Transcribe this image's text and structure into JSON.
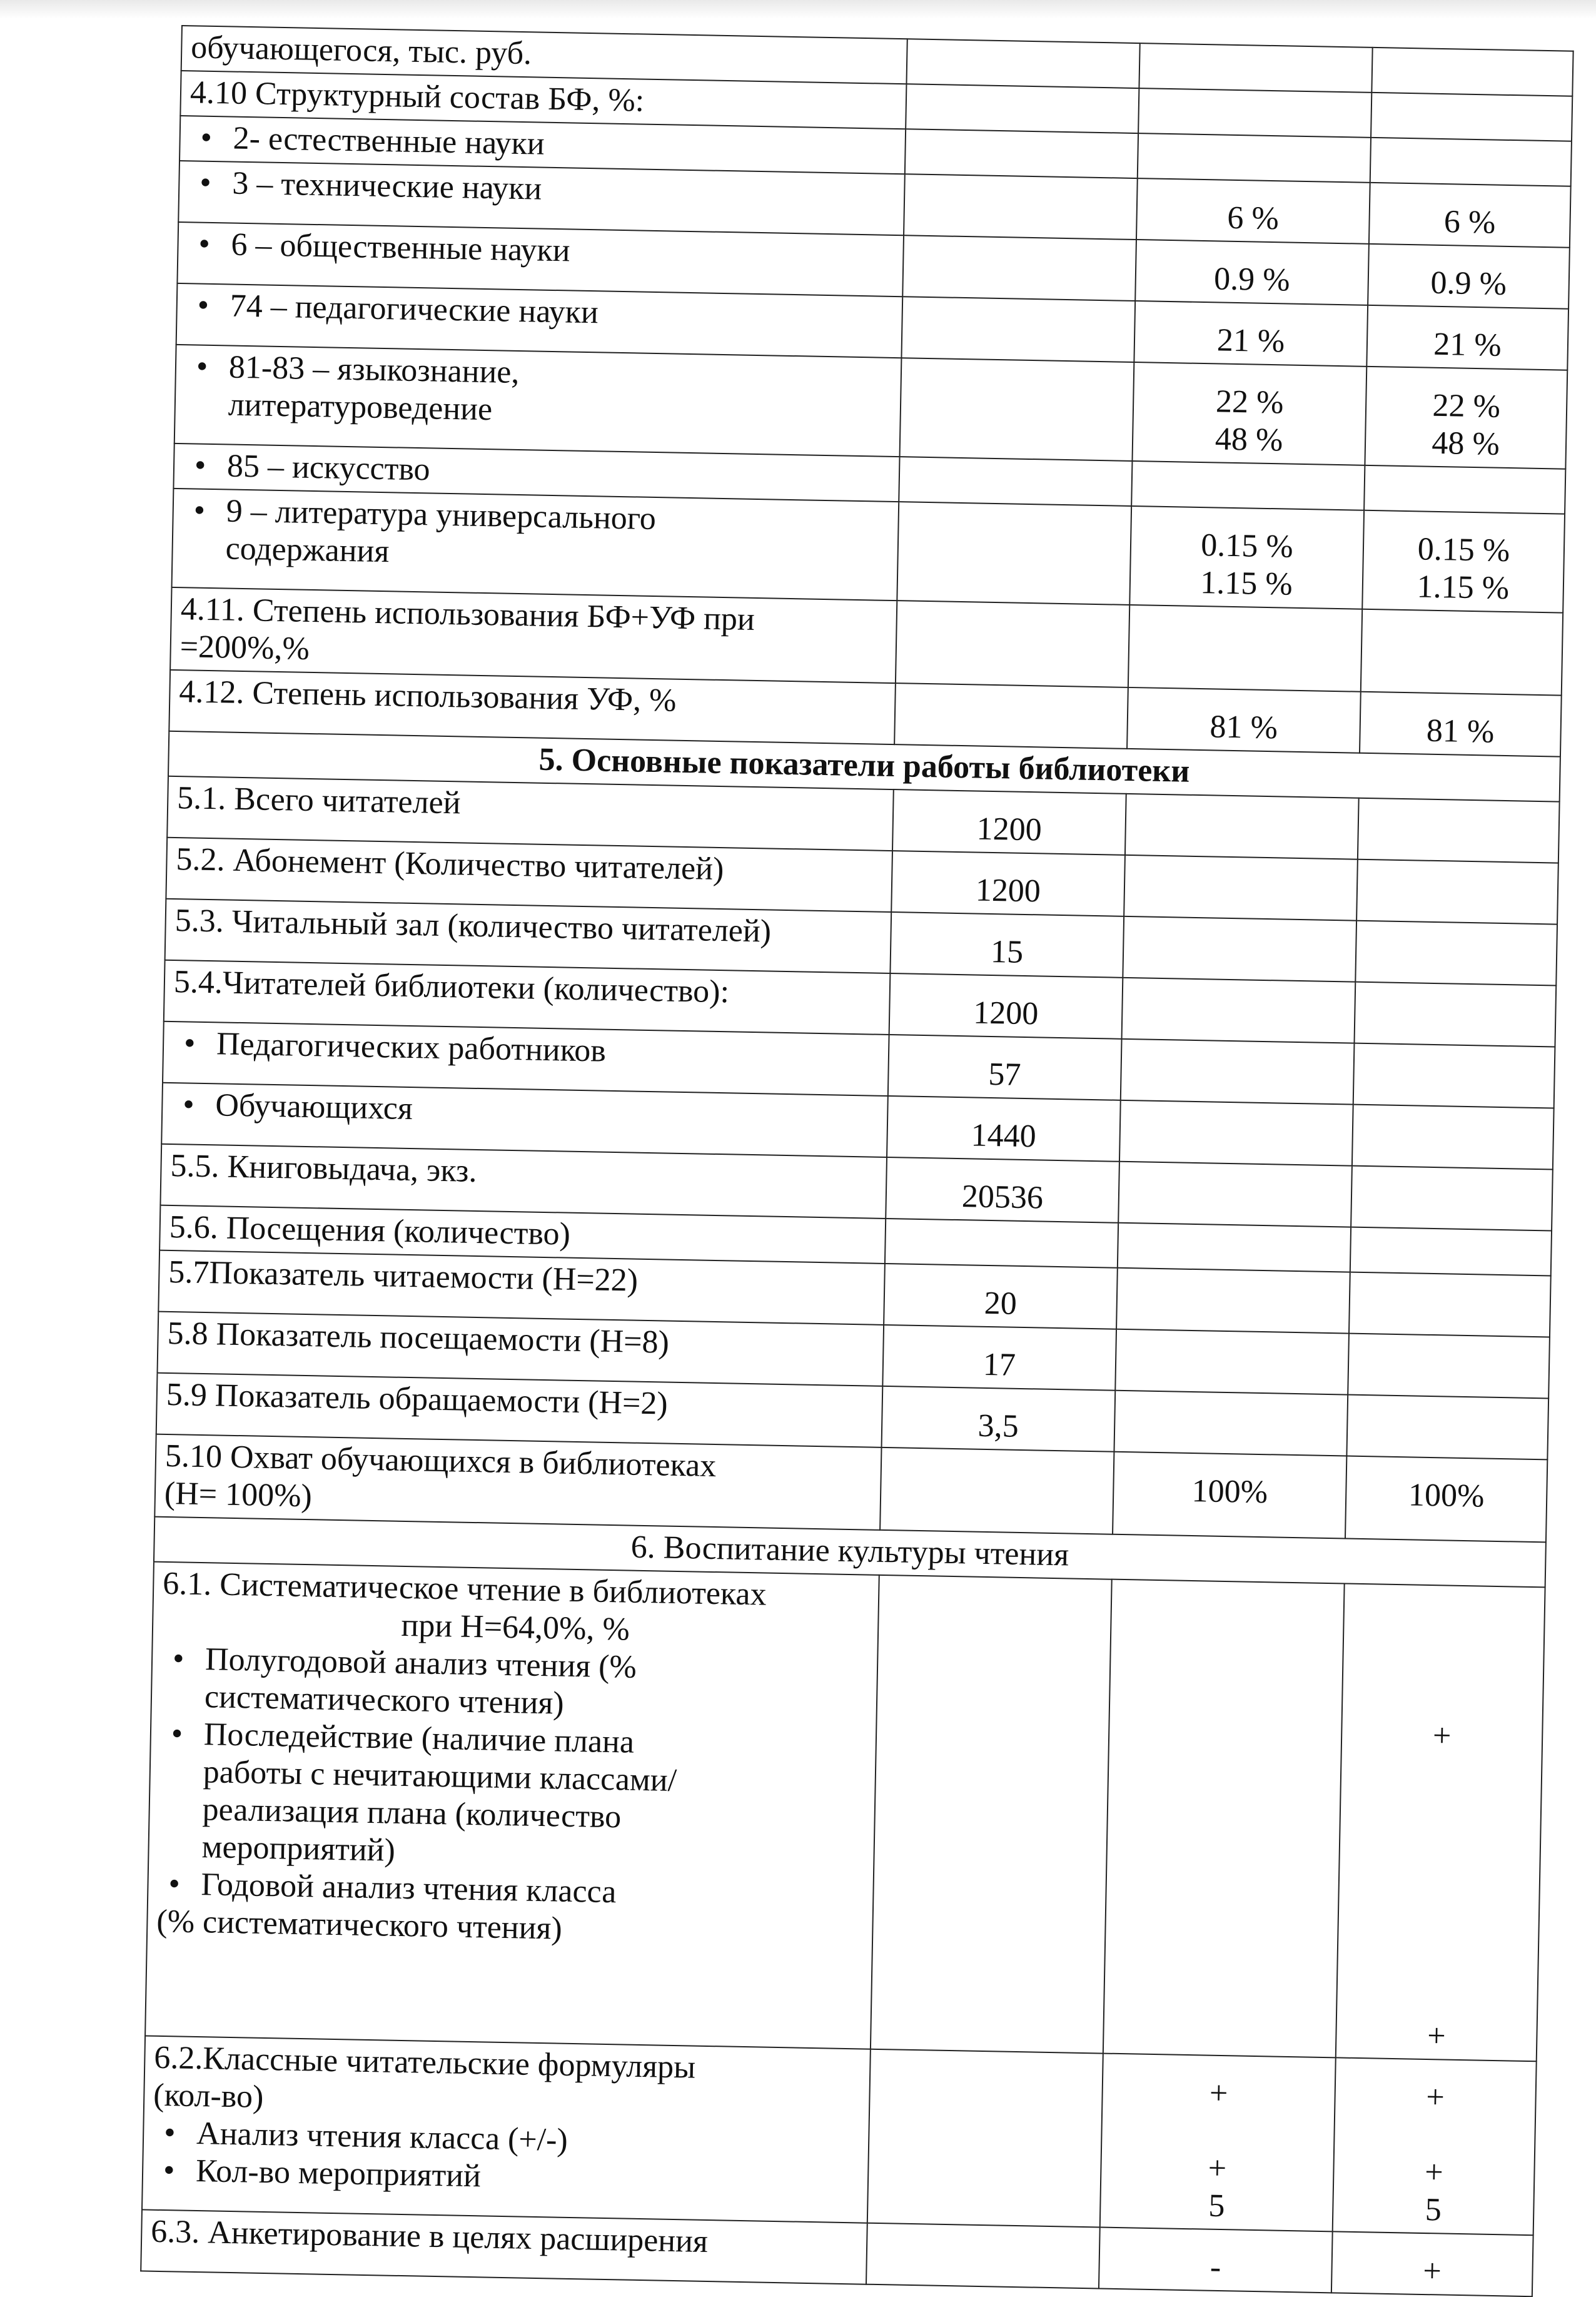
{
  "document": {
    "rows": [
      {
        "type": "row",
        "label": [
          "обучающегося, тыс. руб."
        ],
        "c2": [],
        "c3": [],
        "c4": []
      },
      {
        "type": "row",
        "label": [
          "4.10 Структурный состав БФ, %:"
        ],
        "c2": [],
        "c3": [],
        "c4": []
      },
      {
        "type": "row",
        "bullet": true,
        "label": [
          "2- естественные науки"
        ],
        "c2": [],
        "c3": [],
        "c4": []
      },
      {
        "type": "row",
        "bullet": true,
        "label": [
          "3 – технические науки"
        ],
        "c2": [],
        "c3": [
          "6 %"
        ],
        "c4": [
          "6 %"
        ]
      },
      {
        "type": "row",
        "bullet": true,
        "label": [
          "6 – общественные науки"
        ],
        "c2": [],
        "c3": [
          "0.9 %"
        ],
        "c4": [
          "0.9 %"
        ]
      },
      {
        "type": "row",
        "bullet": true,
        "label": [
          "74 – педагогические науки"
        ],
        "c2": [],
        "c3": [
          "21 %"
        ],
        "c4": [
          "21 %"
        ]
      },
      {
        "type": "row",
        "bullet": true,
        "label": [
          "81-83 – языкознание,",
          "литературоведение"
        ],
        "c2": [],
        "c3": [
          "22 %",
          "48 %"
        ],
        "c4": [
          "22 %",
          "48 %"
        ]
      },
      {
        "type": "row",
        "bullet": true,
        "label": [
          "85 – искусство"
        ],
        "c2": [],
        "c3": [],
        "c4": []
      },
      {
        "type": "row",
        "bullet": true,
        "label": [
          "9 – литература универсального",
          "содержания"
        ],
        "c2": [],
        "c3": [
          "0.15 %",
          "1.15 %"
        ],
        "c4": [
          "0.15 %",
          "1.15 %"
        ]
      },
      {
        "type": "row",
        "label": [
          "4.11. Степень использования БФ+УФ при",
          "=200%,%"
        ],
        "c2": [],
        "c3": [],
        "c4": []
      },
      {
        "type": "row",
        "label": [
          "4.12. Степень использования УФ, %"
        ],
        "c2": [],
        "c3": [
          "81 %"
        ],
        "c4": [
          "81 %"
        ]
      },
      {
        "type": "section",
        "bold": true,
        "label": [
          "5. Основные показатели работы библиотеки"
        ]
      },
      {
        "type": "row",
        "label": [
          "5.1. Всего читателей"
        ],
        "c2": [
          "1200"
        ],
        "c3": [],
        "c4": []
      },
      {
        "type": "row",
        "label": [
          "5.2. Абонемент (Количество читателей)"
        ],
        "c2": [
          "1200"
        ],
        "c3": [],
        "c4": []
      },
      {
        "type": "row",
        "label": [
          "5.3. Читальный зал (количество читателей)"
        ],
        "c2": [
          "15"
        ],
        "c3": [],
        "c4": []
      },
      {
        "type": "row",
        "label": [
          "5.4.Читателей библиотеки (количество):"
        ],
        "c2": [
          "1200"
        ],
        "c3": [],
        "c4": []
      },
      {
        "type": "row",
        "bullet": true,
        "label": [
          "Педагогических работников"
        ],
        "c2": [
          "57"
        ],
        "c3": [],
        "c4": []
      },
      {
        "type": "row",
        "bullet": true,
        "label": [
          "Обучающихся"
        ],
        "c2": [
          "1440"
        ],
        "c3": [],
        "c4": []
      },
      {
        "type": "row",
        "label": [
          "5.5. Книговыдача, экз."
        ],
        "c2": [
          "20536"
        ],
        "c3": [],
        "c4": []
      },
      {
        "type": "row",
        "label": [
          "5.6. Посещения (количество)"
        ],
        "c2": [],
        "c3": [],
        "c4": []
      },
      {
        "type": "row",
        "label": [
          "5.7Показатель читаемости (Н=22)"
        ],
        "c2": [
          "20"
        ],
        "c3": [],
        "c4": []
      },
      {
        "type": "row",
        "label": [
          "5.8 Показатель посещаемости (Н=8)"
        ],
        "c2": [
          "17"
        ],
        "c3": [],
        "c4": []
      },
      {
        "type": "row",
        "label": [
          "5.9 Показатель обращаемости (Н=2)"
        ],
        "c2": [
          "3,5"
        ],
        "c3": [],
        "c4": []
      },
      {
        "type": "row",
        "label": [
          "5.10 Охват обучающихся в библиотеках",
          "(Н= 100%)"
        ],
        "c2": [],
        "c3": [
          "100%"
        ],
        "c4": [
          "100%"
        ]
      },
      {
        "type": "section",
        "bold": false,
        "label": [
          "6. Воспитание культуры чтения"
        ]
      },
      {
        "type": "row",
        "label": [
          "6.1. Систематическое чтение в библиотеках"
        ],
        "center_line": "при Н=64,0%, %",
        "bullets": [
          [
            "Полугодовой анализ чтения (%",
            "систематического чтения)"
          ],
          [
            "Последействие (наличие плана",
            "работы с нечитающими классами/",
            "реализация плана (количество",
            "мероприятий)"
          ],
          [
            "Годовой анализ чтения класса"
          ]
        ],
        "tail": "(% систематического чтения)",
        "c2": [],
        "c3": [],
        "c4": [
          "",
          "",
          "",
          "+",
          "",
          "",
          "",
          "",
          "",
          "",
          "",
          "+"
        ]
      },
      {
        "type": "row",
        "label": [
          "6.2.Классные читательские формуляры",
          "(кол-во)"
        ],
        "bullets": [
          [
            "Анализ чтения класса (+/-)"
          ],
          [
            "Кол-во мероприятий"
          ]
        ],
        "c2": [],
        "c3": [
          "+",
          "",
          "+",
          "5"
        ],
        "c4": [
          "+",
          "",
          "+",
          "5"
        ]
      },
      {
        "type": "row",
        "label": [
          "6.3. Анкетирование в целях расширения"
        ],
        "c2": [],
        "c3": [
          "-"
        ],
        "c4": [
          "+"
        ]
      }
    ]
  }
}
